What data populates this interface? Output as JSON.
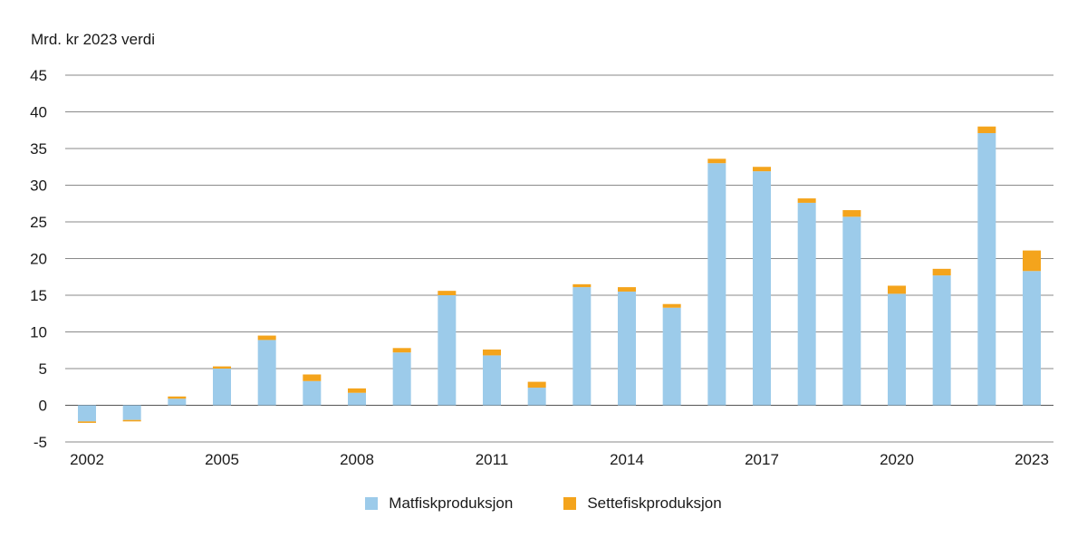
{
  "chart_data": {
    "type": "bar",
    "stacked": true,
    "ylabel": "Mrd. kr 2023 verdi",
    "xlabel": "",
    "ylim": [
      -5,
      45
    ],
    "y_ticks": [
      45,
      40,
      35,
      30,
      25,
      20,
      15,
      10,
      5,
      0,
      -5
    ],
    "grid": true,
    "legend_position": "bottom",
    "categories": [
      "2002",
      "2003",
      "2004",
      "2005",
      "2006",
      "2007",
      "2008",
      "2009",
      "2010",
      "2011",
      "2012",
      "2013",
      "2014",
      "2015",
      "2016",
      "2017",
      "2018",
      "2019",
      "2020",
      "2021",
      "2022",
      "2023"
    ],
    "x_tick_labels": [
      "2002",
      "2005",
      "2008",
      "2011",
      "2014",
      "2017",
      "2020",
      "2023"
    ],
    "series": [
      {
        "name": "Matfiskproduksjon",
        "color": "#9ccbea",
        "values": [
          -2.2,
          -2.0,
          0.9,
          5.0,
          8.9,
          3.3,
          1.7,
          7.2,
          15.0,
          6.8,
          2.4,
          16.1,
          15.5,
          13.3,
          33.0,
          31.9,
          27.6,
          25.7,
          15.2,
          17.7,
          37.1,
          18.3
        ]
      },
      {
        "name": "Settefiskproduksjon",
        "color": "#f4a41c",
        "values": [
          -0.2,
          -0.2,
          0.3,
          0.3,
          0.6,
          0.9,
          0.6,
          0.6,
          0.6,
          0.8,
          0.8,
          0.4,
          0.6,
          0.5,
          0.6,
          0.6,
          0.6,
          0.9,
          1.1,
          0.9,
          0.9,
          2.8
        ]
      }
    ]
  }
}
